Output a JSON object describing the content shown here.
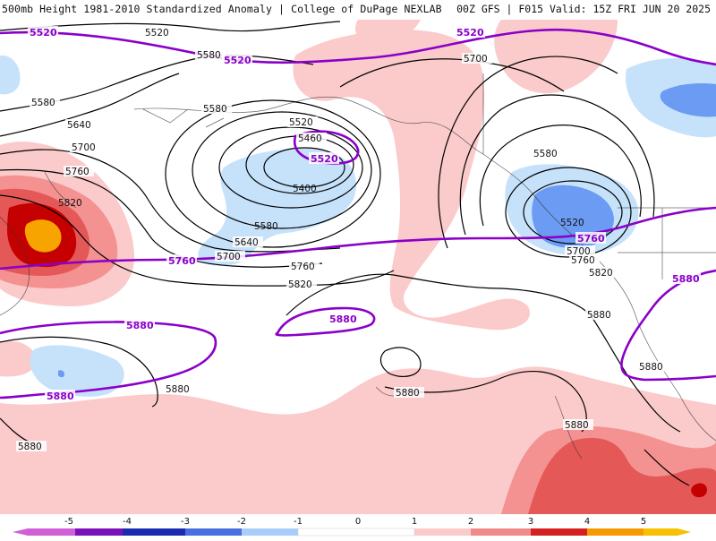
{
  "header": {
    "title": "500mb Height 1981-2010 Standardized Anomaly | College of DuPage NEXLAB",
    "run_info": "00Z GFS | F015 Valid: 15Z FRI JUN 20 2025"
  },
  "colors": {
    "anom_neg1": "#c6e2fb",
    "anom_neg2": "#6b9bf2",
    "anom_neg3": "#2f5fd8",
    "anom_neg4": "#1b2bb0",
    "anom_neg5": "#7a10b8",
    "anom_pos1": "#fbcaca",
    "anom_pos2": "#f49191",
    "anom_pos3": "#e55858",
    "anom_pos4": "#c50000",
    "anom_pos5": "#f7a400",
    "highlight_contour": "#8b00c9",
    "height_contour": "#000000"
  },
  "contour_labels": {
    "black": [
      "5520",
      "5580",
      "5580",
      "5640",
      "5700",
      "5760",
      "5820",
      "5580",
      "5520",
      "5460",
      "5400",
      "5580",
      "5640",
      "5700",
      "5760",
      "5820",
      "5700",
      "5580",
      "5520",
      "5700",
      "5760",
      "5820",
      "5880",
      "5880",
      "5880",
      "5880",
      "5880",
      "5880"
    ],
    "purple": [
      "5520",
      "5520",
      "5520",
      "5520",
      "5760",
      "5760",
      "5880",
      "5880",
      "5880",
      "5880"
    ]
  },
  "legend": {
    "ticks": [
      "-5",
      "-4",
      "-3",
      "-2",
      "-1",
      "0",
      "1",
      "2",
      "3",
      "4",
      "5"
    ]
  }
}
